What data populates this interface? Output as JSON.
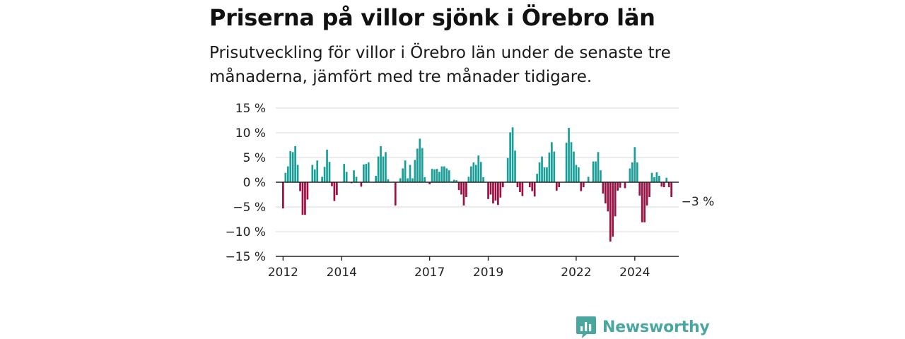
{
  "title": "Priserna på villor sjönk i Örebro län",
  "subtitle": "Prisutveckling för villor i Örebro län under de senaste tre månaderna, jämfört med tre månader tidigare.",
  "brand": {
    "name": "Newsworthy"
  },
  "colors": {
    "positive": "#1a9f98",
    "negative": "#9b0f43",
    "grid": "#d9d9d9",
    "axis": "#222222",
    "brand": "#4aa79f"
  },
  "chart_data": {
    "type": "bar",
    "ylim": [
      -15,
      15
    ],
    "yticks": [
      15,
      10,
      5,
      0,
      -5,
      -10,
      -15
    ],
    "ytick_labels": [
      "15 %",
      "10 %",
      "5 %",
      "0 %",
      "−5 %",
      "−10 %",
      "−15 %"
    ],
    "xlim": [
      2011.75,
      2025.5
    ],
    "xticks": [
      2012,
      2014,
      2017,
      2019,
      2022,
      2024
    ],
    "xtick_labels": [
      "2012",
      "2014",
      "2017",
      "2019",
      "2022",
      "2024"
    ],
    "start": "2012-01",
    "frequency": "monthly",
    "values": [
      -5.3,
      1.9,
      3.2,
      6.3,
      6.1,
      7.3,
      3.5,
      -1.8,
      -6.6,
      -6.6,
      -3.5,
      0,
      3.5,
      2.6,
      4.4,
      0,
      1.1,
      3.1,
      6.6,
      4.1,
      -0.8,
      -3.8,
      -2.6,
      0,
      0,
      3.7,
      2.1,
      0,
      -0.2,
      2.4,
      1.1,
      0,
      -0.9,
      3.6,
      3.7,
      4.0,
      0,
      0,
      1.3,
      5.2,
      7.3,
      5.2,
      6.1,
      0.6,
      0,
      0,
      -4.7,
      0,
      0.8,
      2.8,
      4.4,
      0.8,
      3.5,
      0.8,
      4.5,
      6.8,
      8.8,
      6.9,
      1.0,
      0,
      -0.4,
      2.7,
      2.6,
      2.7,
      2.1,
      3.2,
      3.2,
      2.8,
      2.4,
      0.2,
      0.5,
      0.4,
      -1.6,
      -2.5,
      -4.7,
      -3.0,
      1.1,
      3.2,
      4.0,
      3.5,
      5.4,
      4.1,
      1.0,
      0,
      -3.4,
      -2.5,
      -4.3,
      -3.7,
      -4.6,
      -3.1,
      -1.0,
      0,
      4.9,
      10.1,
      11.1,
      6.4,
      -1.0,
      -2.0,
      -2.8,
      0,
      0,
      -1.0,
      -1.8,
      -2.9,
      1.7,
      4.0,
      5.2,
      3.0,
      3.0,
      6.0,
      8.1,
      6.2,
      -1.7,
      -1.0,
      0,
      0,
      8.0,
      11.0,
      8.1,
      6.2,
      3.5,
      3.0,
      -1.8,
      -1.0,
      0,
      1.1,
      0,
      4.2,
      4.2,
      6.1,
      2.4,
      -2.3,
      -4.3,
      -5.9,
      -12.0,
      -11.0,
      -6.9,
      -1.7,
      -1.1,
      0,
      -1.2,
      0,
      2.8,
      4.0,
      7.1,
      4.0,
      -2.7,
      -8.1,
      -8.1,
      -4.7,
      -3.0,
      1.9,
      1.0,
      2.0,
      1.3,
      -0.9,
      -1.0,
      0.9,
      -1.0,
      -3.0
    ],
    "annotation": {
      "label": "−3 %",
      "value": -3
    }
  }
}
